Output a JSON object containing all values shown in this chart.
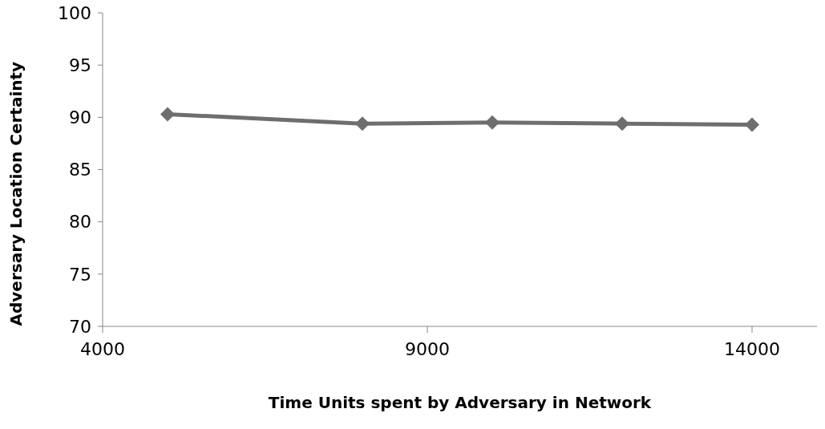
{
  "chart_data": {
    "type": "line",
    "xlabel": "Time Units spent by Adversary in Network",
    "ylabel": "Adversary Location Certainty",
    "x": [
      5000,
      8000,
      10000,
      12000,
      14000
    ],
    "series": [
      {
        "color": "#6e6e6e",
        "values": [
          90.3,
          89.4,
          89.5,
          89.4,
          89.3
        ]
      }
    ],
    "xlim": [
      4000,
      15000
    ],
    "xticks": [
      4000,
      9000,
      14000
    ],
    "ylim": [
      70,
      100
    ],
    "yticks": [
      70,
      75,
      80,
      85,
      90,
      95,
      100
    ],
    "grid": false,
    "legend": false,
    "marker": "diamond",
    "line_style": "solid"
  }
}
